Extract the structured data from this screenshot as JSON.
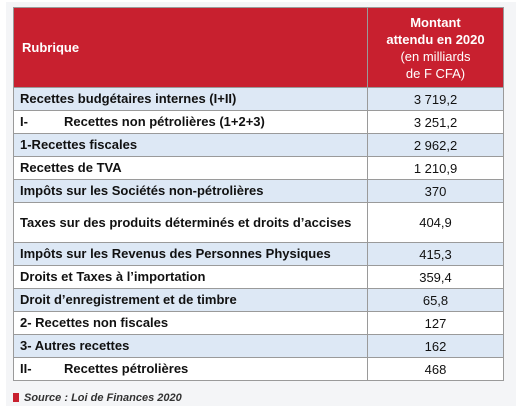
{
  "header": {
    "col1": "Rubrique",
    "col2_title_line1": "Montant",
    "col2_title_line2": "attendu en 2020",
    "col2_sub_line1": "(en milliards",
    "col2_sub_line2": "de F CFA)"
  },
  "rows": [
    {
      "label": "Recettes budgétaires internes (I+II)",
      "value": "3 719,2"
    },
    {
      "prefix": "I-",
      "label": "Recettes non pétrolières (1+2+3)",
      "value": "3 251,2"
    },
    {
      "label": "1-Recettes fiscales",
      "value": "2 962,2"
    },
    {
      "label": "Recettes de TVA",
      "value": "1 210,9"
    },
    {
      "label": "Impôts sur les Sociétés non-pétrolières",
      "value": "370"
    },
    {
      "label": "Taxes sur des produits déterminés et droits d’accises",
      "value": "404,9"
    },
    {
      "label": "Impôts sur les Revenus des Personnes Physiques",
      "value": "415,3"
    },
    {
      "label": "Droits et Taxes à l’importation",
      "value": "359,4"
    },
    {
      "label": "Droit d’enregistrement et de timbre",
      "value": "65,8"
    },
    {
      "label": "2- Recettes non fiscales",
      "value": "127"
    },
    {
      "label": "3- Autres recettes",
      "value": "162"
    },
    {
      "prefix": "II-",
      "label": "Recettes pétrolières",
      "value": "468"
    }
  ],
  "source": "Source : Loi de Finances 2020",
  "colors": {
    "header_bg": "#c8202f",
    "header_text": "#ffffff",
    "shaded_row": "#dde8f5",
    "border": "#9a9a9a"
  }
}
